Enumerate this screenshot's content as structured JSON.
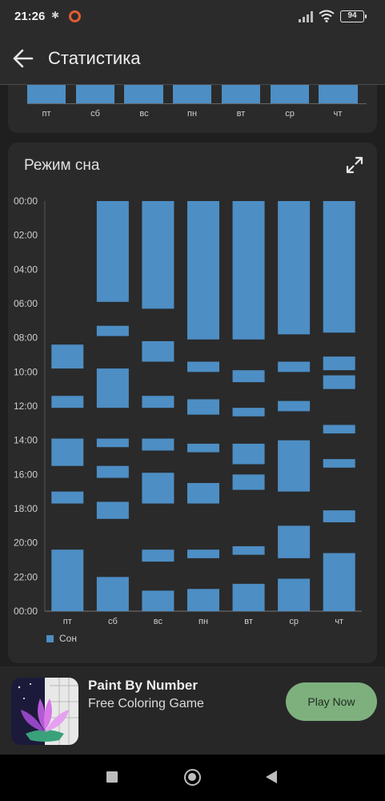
{
  "status": {
    "time": "21:26",
    "battery": "94"
  },
  "app_bar": {
    "title": "Статистика"
  },
  "previous_chart": {
    "categories": [
      "пт",
      "сб",
      "вс",
      "пн",
      "вт",
      "ср",
      "чт"
    ]
  },
  "sleep_card": {
    "title": "Режим сна"
  },
  "chart_data": {
    "type": "bar",
    "title": "Режим сна",
    "categories": [
      "пт",
      "сб",
      "вс",
      "пн",
      "вт",
      "ср",
      "чт"
    ],
    "y_ticks": [
      "00:00",
      "02:00",
      "04:00",
      "06:00",
      "08:00",
      "10:00",
      "12:00",
      "14:00",
      "16:00",
      "18:00",
      "20:00",
      "22:00",
      "00:00"
    ],
    "ylim_hours": [
      0,
      24
    ],
    "y_inverted": true,
    "legend": {
      "position": "bottom-left",
      "entries": [
        "Сон"
      ]
    },
    "series": [
      {
        "name": "Сон",
        "color": "#4d8ec4",
        "intervals_hours": [
          [
            [
              8.4,
              9.8
            ],
            [
              11.4,
              12.1
            ],
            [
              13.9,
              15.5
            ],
            [
              17.0,
              17.7
            ],
            [
              20.4,
              24.0
            ]
          ],
          [
            [
              0.0,
              5.9
            ],
            [
              7.3,
              7.9
            ],
            [
              9.8,
              12.1
            ],
            [
              13.9,
              14.4
            ],
            [
              15.5,
              16.2
            ],
            [
              17.6,
              18.6
            ],
            [
              22.0,
              24.0
            ]
          ],
          [
            [
              0.0,
              6.3
            ],
            [
              8.2,
              9.4
            ],
            [
              11.4,
              12.1
            ],
            [
              13.9,
              14.6
            ],
            [
              15.9,
              17.7
            ],
            [
              20.4,
              21.1
            ],
            [
              22.8,
              24.0
            ]
          ],
          [
            [
              0.0,
              8.1
            ],
            [
              9.4,
              10.0
            ],
            [
              11.6,
              12.5
            ],
            [
              14.2,
              14.7
            ],
            [
              16.5,
              17.7
            ],
            [
              20.4,
              20.9
            ],
            [
              22.7,
              24.0
            ]
          ],
          [
            [
              0.0,
              8.1
            ],
            [
              9.9,
              10.6
            ],
            [
              12.1,
              12.6
            ],
            [
              14.2,
              15.4
            ],
            [
              16.0,
              16.9
            ],
            [
              20.2,
              20.7
            ],
            [
              22.4,
              24.0
            ]
          ],
          [
            [
              0.0,
              7.8
            ],
            [
              9.4,
              10.0
            ],
            [
              11.7,
              12.3
            ],
            [
              14.0,
              17.0
            ],
            [
              19.0,
              20.9
            ],
            [
              22.1,
              24.0
            ]
          ],
          [
            [
              0.0,
              7.7
            ],
            [
              9.1,
              9.9
            ],
            [
              10.2,
              11.0
            ],
            [
              13.1,
              13.6
            ],
            [
              15.1,
              15.6
            ],
            [
              18.1,
              18.8
            ],
            [
              20.6,
              24.0
            ]
          ]
        ]
      }
    ]
  },
  "ad": {
    "title": "Paint By Number",
    "subtitle": "Free Coloring Game",
    "button_label": "Play Now",
    "icon": "lotus-flower-icon"
  },
  "nav": {
    "icons": [
      "recents-square-icon",
      "home-circle-icon",
      "back-triangle-icon"
    ]
  }
}
